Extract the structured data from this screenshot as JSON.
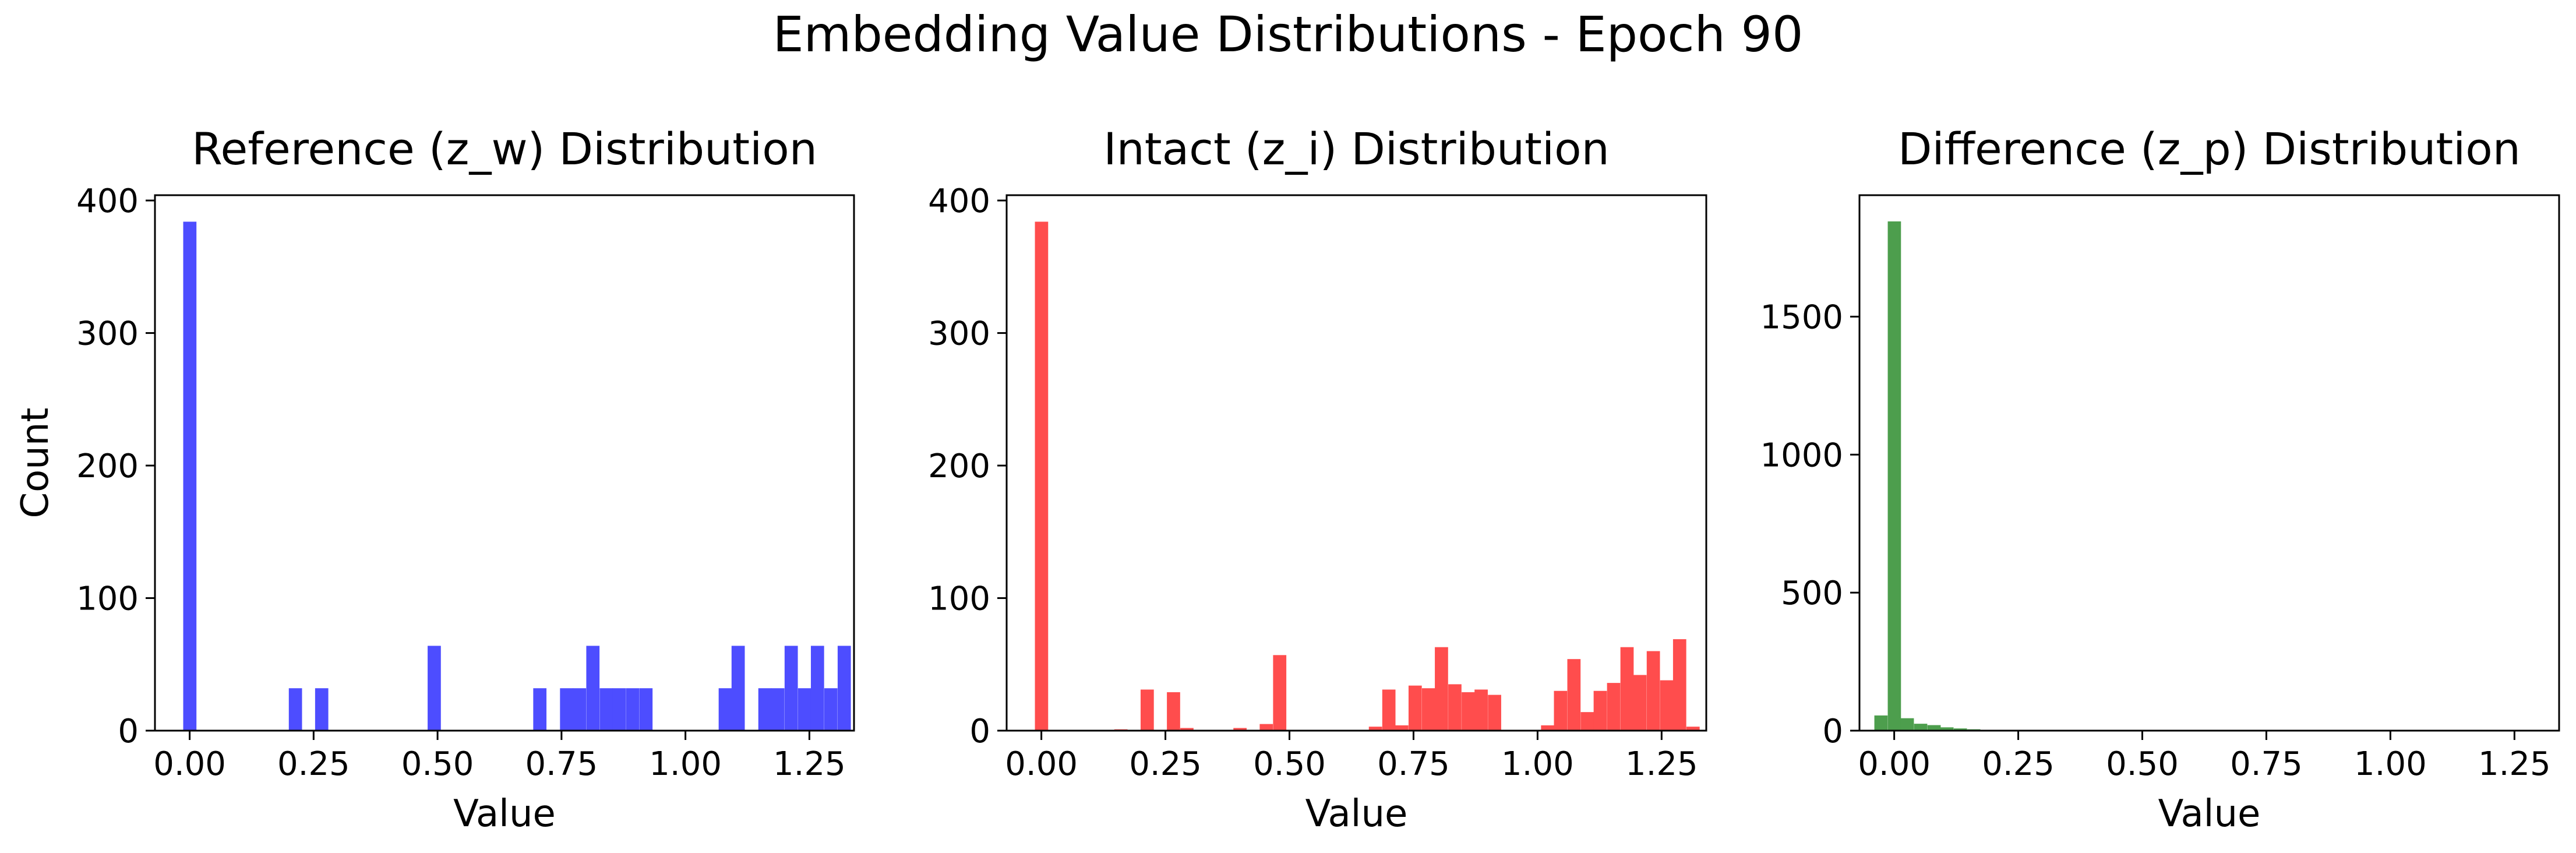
{
  "figure": {
    "suptitle": "Embedding Value Distributions - Epoch 90"
  },
  "chart_data": [
    {
      "type": "bar",
      "title": "Reference (z_w) Distribution",
      "xlabel": "Value",
      "ylabel": "Count",
      "color": "#4d4dff",
      "xlim": [
        -0.07,
        1.34
      ],
      "ylim": [
        0,
        404
      ],
      "xticks": [
        "0.00",
        "0.25",
        "0.50",
        "0.75",
        "1.00",
        "1.25"
      ],
      "xtick_values": [
        0.0,
        0.25,
        0.5,
        0.75,
        1.0,
        1.25
      ],
      "yticks": [
        "0",
        "100",
        "200",
        "300",
        "400"
      ],
      "ytick_values": [
        0,
        100,
        200,
        300,
        400
      ],
      "bin_width": 0.02667,
      "bin_starts": [
        -0.013,
        0.2,
        0.253,
        0.48,
        0.693,
        0.747,
        0.773,
        0.8,
        0.827,
        0.853,
        0.88,
        0.907,
        1.067,
        1.093,
        1.147,
        1.173,
        1.2,
        1.227,
        1.253,
        1.28,
        1.307
      ],
      "values": [
        384,
        32,
        32,
        64,
        32,
        32,
        32,
        64,
        32,
        32,
        32,
        32,
        32,
        64,
        32,
        32,
        64,
        32,
        64,
        32,
        64
      ]
    },
    {
      "type": "bar",
      "title": "Intact (z_i) Distribution",
      "xlabel": "Value",
      "ylabel": "",
      "color": "#ff4d4d",
      "xlim": [
        -0.07,
        1.34
      ],
      "ylim": [
        0,
        404
      ],
      "xticks": [
        "0.00",
        "0.25",
        "0.50",
        "0.75",
        "1.00",
        "1.25"
      ],
      "xtick_values": [
        0.0,
        0.25,
        0.5,
        0.75,
        1.0,
        1.25
      ],
      "yticks": [
        "0",
        "100",
        "200",
        "300",
        "400"
      ],
      "ytick_values": [
        0,
        100,
        200,
        300,
        400
      ],
      "bin_width": 0.02667,
      "bin_starts": [
        -0.013,
        0.147,
        0.2,
        0.253,
        0.28,
        0.387,
        0.44,
        0.467,
        0.66,
        0.687,
        0.713,
        0.74,
        0.767,
        0.793,
        0.82,
        0.847,
        0.873,
        0.9,
        1.007,
        1.033,
        1.06,
        1.087,
        1.113,
        1.14,
        1.167,
        1.193,
        1.22,
        1.247,
        1.273,
        1.3
      ],
      "values": [
        384,
        1,
        31,
        29,
        2,
        2,
        5,
        57,
        3,
        31,
        4,
        34,
        32,
        63,
        35,
        29,
        31,
        27,
        4,
        30,
        54,
        14,
        30,
        36,
        63,
        42,
        60,
        38,
        69,
        3
      ]
    },
    {
      "type": "bar",
      "title": "Difference (z_p) Distribution",
      "xlabel": "Value",
      "ylabel": "",
      "color": "#4d9e4d",
      "xlim": [
        -0.07,
        1.34
      ],
      "ylim": [
        0,
        1940
      ],
      "xticks": [
        "0.00",
        "0.25",
        "0.50",
        "0.75",
        "1.00",
        "1.25"
      ],
      "xtick_values": [
        0.0,
        0.25,
        0.5,
        0.75,
        1.0,
        1.25
      ],
      "yticks": [
        "0",
        "500",
        "1000",
        "1500"
      ],
      "ytick_values": [
        0,
        500,
        1000,
        1500
      ],
      "bin_width": 0.02667,
      "bin_starts": [
        -0.04,
        -0.013,
        0.013,
        0.04,
        0.067,
        0.093,
        0.12,
        0.147,
        0.173
      ],
      "values": [
        55,
        1845,
        45,
        25,
        20,
        12,
        8,
        5,
        3
      ]
    }
  ]
}
